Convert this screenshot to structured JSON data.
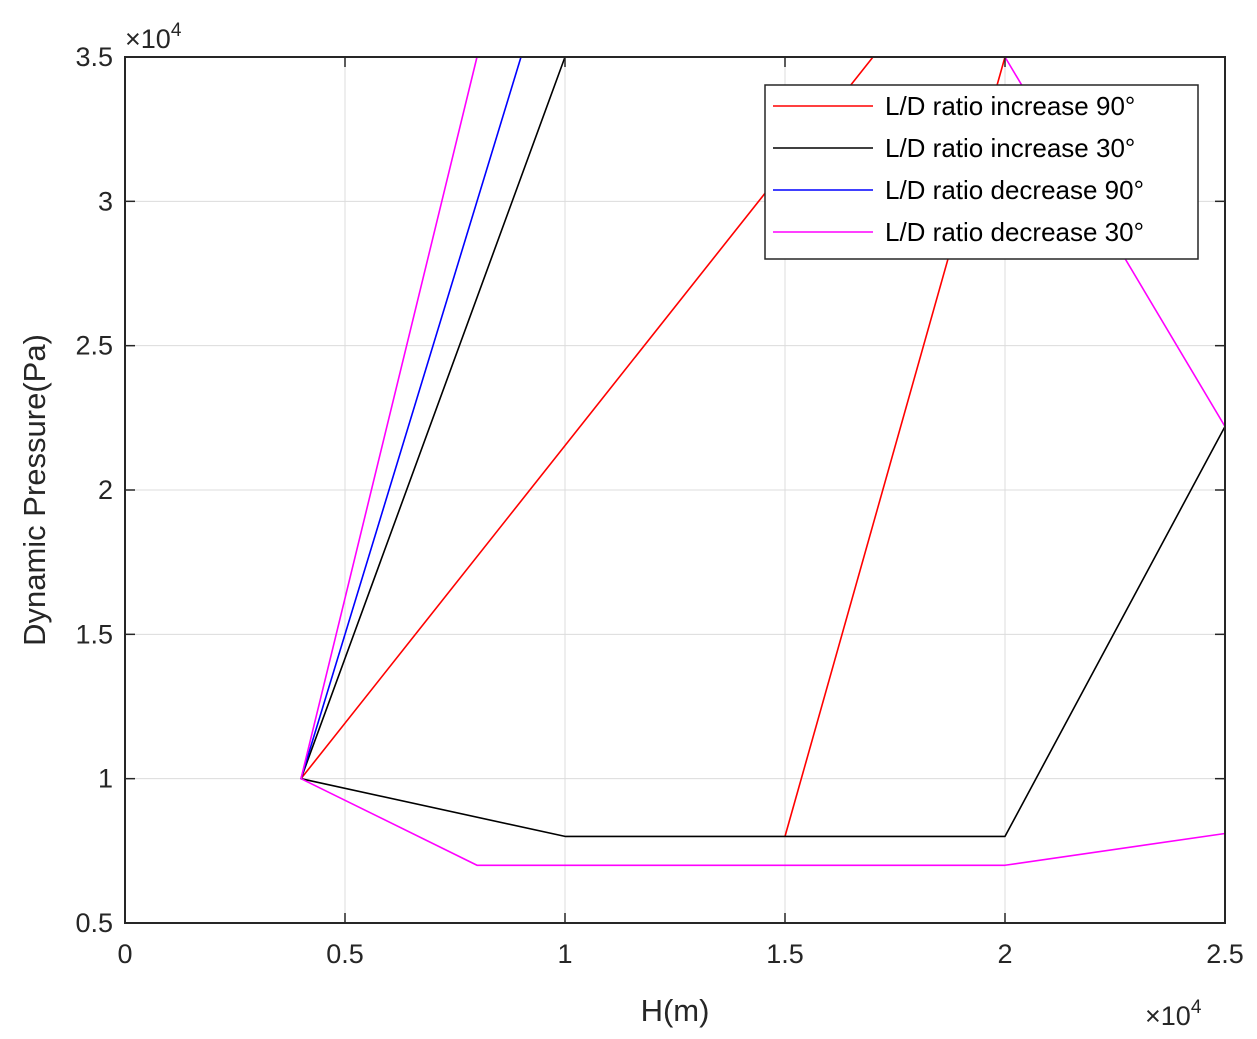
{
  "chart_data": {
    "type": "line",
    "title": "",
    "xlabel": "H(m)",
    "ylabel": "Dynamic Pressure(Pa)",
    "xlim": [
      0,
      25000
    ],
    "ylim": [
      5000,
      35000
    ],
    "x_multiplier": {
      "base": "×10",
      "exp": "4"
    },
    "y_multiplier": {
      "base": "×10",
      "exp": "4"
    },
    "xticks": [
      0,
      5000,
      10000,
      15000,
      20000,
      25000
    ],
    "xtick_labels": [
      "0",
      "0.5",
      "1",
      "1.5",
      "2",
      "2.5"
    ],
    "yticks": [
      5000,
      10000,
      15000,
      20000,
      25000,
      30000,
      35000
    ],
    "ytick_labels": [
      "0.5",
      "1",
      "1.5",
      "2",
      "2.5",
      "3",
      "3.5"
    ],
    "grid": true,
    "legend_position": "top-right",
    "series": [
      {
        "name": "L/D ratio increase 90°",
        "color": "#ff0000",
        "segments": [
          {
            "x": [
              4000,
              17000
            ],
            "y": [
              10000,
              35000
            ]
          },
          {
            "x": [
              15000,
              20000
            ],
            "y": [
              8000,
              35000
            ]
          }
        ]
      },
      {
        "name": "L/D ratio increase 30°",
        "color": "#000000",
        "segments": [
          {
            "x": [
              10000,
              4000,
              10000,
              20000,
              25000
            ],
            "y": [
              35000,
              10000,
              8000,
              8000,
              22200
            ]
          }
        ]
      },
      {
        "name": "L/D ratio decrease 90°",
        "color": "#0000ff",
        "segments": [
          {
            "x": [
              4000,
              9000
            ],
            "y": [
              10000,
              35000
            ]
          }
        ]
      },
      {
        "name": "L/D ratio decrease 30°",
        "color": "#ff00ff",
        "segments": [
          {
            "x": [
              8000,
              4000,
              8000,
              20000,
              25000,
              25000,
              20000,
              8000
            ],
            "y": [
              35000,
              10000,
              7000,
              7000,
              8100,
              22200,
              35000,
              35000
            ]
          }
        ]
      }
    ]
  }
}
